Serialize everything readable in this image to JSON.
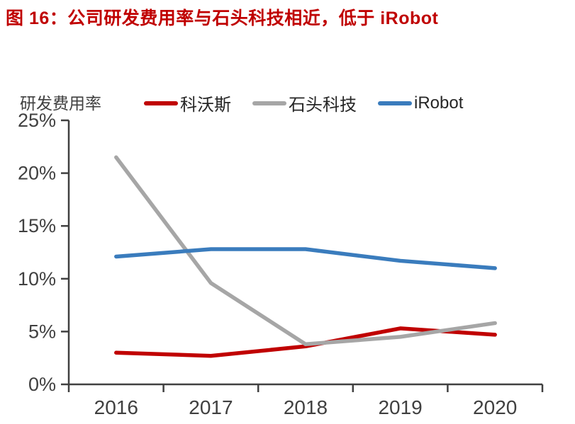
{
  "header": {
    "title": "图 16：公司研发费用率与石头科技相近，低于 iRobot",
    "title_color": "#C00000"
  },
  "chart_data": {
    "type": "line",
    "title": "",
    "ylabel": "研发费用率",
    "xlabel": "",
    "x": [
      "2016",
      "2017",
      "2018",
      "2019",
      "2020"
    ],
    "series": [
      {
        "name": "科沃斯",
        "color": "#C00000",
        "values": [
          3.0,
          2.7,
          3.6,
          5.3,
          4.7
        ]
      },
      {
        "name": "石头科技",
        "color": "#A6A6A6",
        "values": [
          21.5,
          9.6,
          3.8,
          4.5,
          5.8
        ]
      },
      {
        "name": "iRobot",
        "color": "#3A7CBD",
        "values": [
          12.1,
          12.8,
          12.8,
          11.7,
          11.0
        ]
      }
    ],
    "ylim": [
      0,
      25
    ],
    "yticks": [
      0,
      5,
      10,
      15,
      20,
      25
    ],
    "ytick_format": "{v}%",
    "grid": false,
    "legend_position": "top",
    "axis_color": "#404040"
  }
}
